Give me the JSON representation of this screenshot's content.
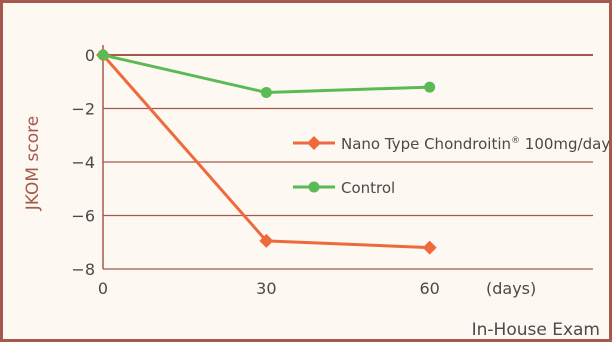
{
  "chart_data": {
    "type": "line",
    "title": "",
    "xlabel": "",
    "ylabel": "JKOM score",
    "x_unit_label": "(days)",
    "footer": "In-House Exam",
    "x": [
      0,
      30,
      60
    ],
    "xlim": [
      0,
      90
    ],
    "ylim": [
      -8,
      0
    ],
    "x_ticks": [
      0,
      30,
      60
    ],
    "y_ticks": [
      0,
      -2,
      -4,
      -6,
      -8
    ],
    "grid": true,
    "legend_position": "right",
    "series": [
      {
        "name_main": "Nano Type Chondroitin",
        "name_reg": "®",
        "name_dose": " 100mg/day",
        "marker": "diamond",
        "color": "#ee6a3d",
        "values": [
          0,
          -6.95,
          -7.2
        ]
      },
      {
        "name": "Control",
        "marker": "circle",
        "color": "#5cba55",
        "values": [
          0,
          -1.4,
          -1.2
        ]
      }
    ]
  },
  "colors": {
    "axis": "#a6584c",
    "grid": "#a6584c",
    "text": "#4a4a4a",
    "background": "#fdf8f1"
  }
}
